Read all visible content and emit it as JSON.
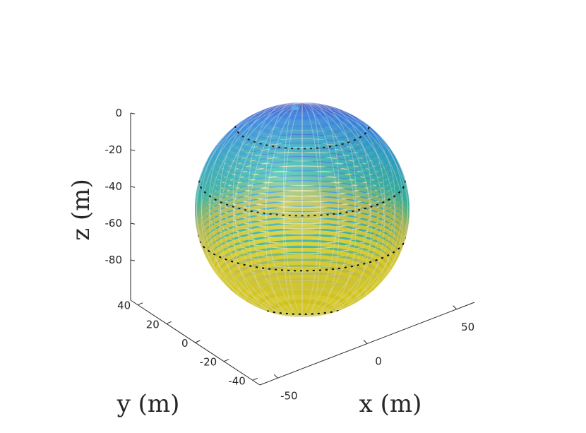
{
  "chart_data": {
    "type": "surface3d",
    "title": "",
    "xlabel": "x (m)",
    "ylabel": "y (m)",
    "zlabel": "z (m)",
    "x_ticks": [
      "-50",
      "0",
      "50"
    ],
    "y_ticks": [
      "-40",
      "-20",
      "0",
      "20",
      "40"
    ],
    "z_ticks": [
      "0",
      "-20",
      "-40",
      "-60",
      "-80"
    ],
    "xlim": [
      -60,
      60
    ],
    "ylim": [
      -45,
      45
    ],
    "zlim": [
      -110,
      0
    ],
    "grid": false,
    "surface": {
      "shape": "sphere",
      "center": [
        0,
        0,
        -55
      ],
      "radius": 55,
      "colormap": "parula",
      "color_by": "z",
      "style": "mesh",
      "dashed_latitudes_z": [
        -12,
        -40,
        -68,
        -96
      ]
    },
    "colors": {
      "top": "#3e26a8",
      "upper": "#2e87f7",
      "middle": "#29c4a5",
      "lower": "#f9fb15",
      "dashes": "#000000"
    }
  }
}
